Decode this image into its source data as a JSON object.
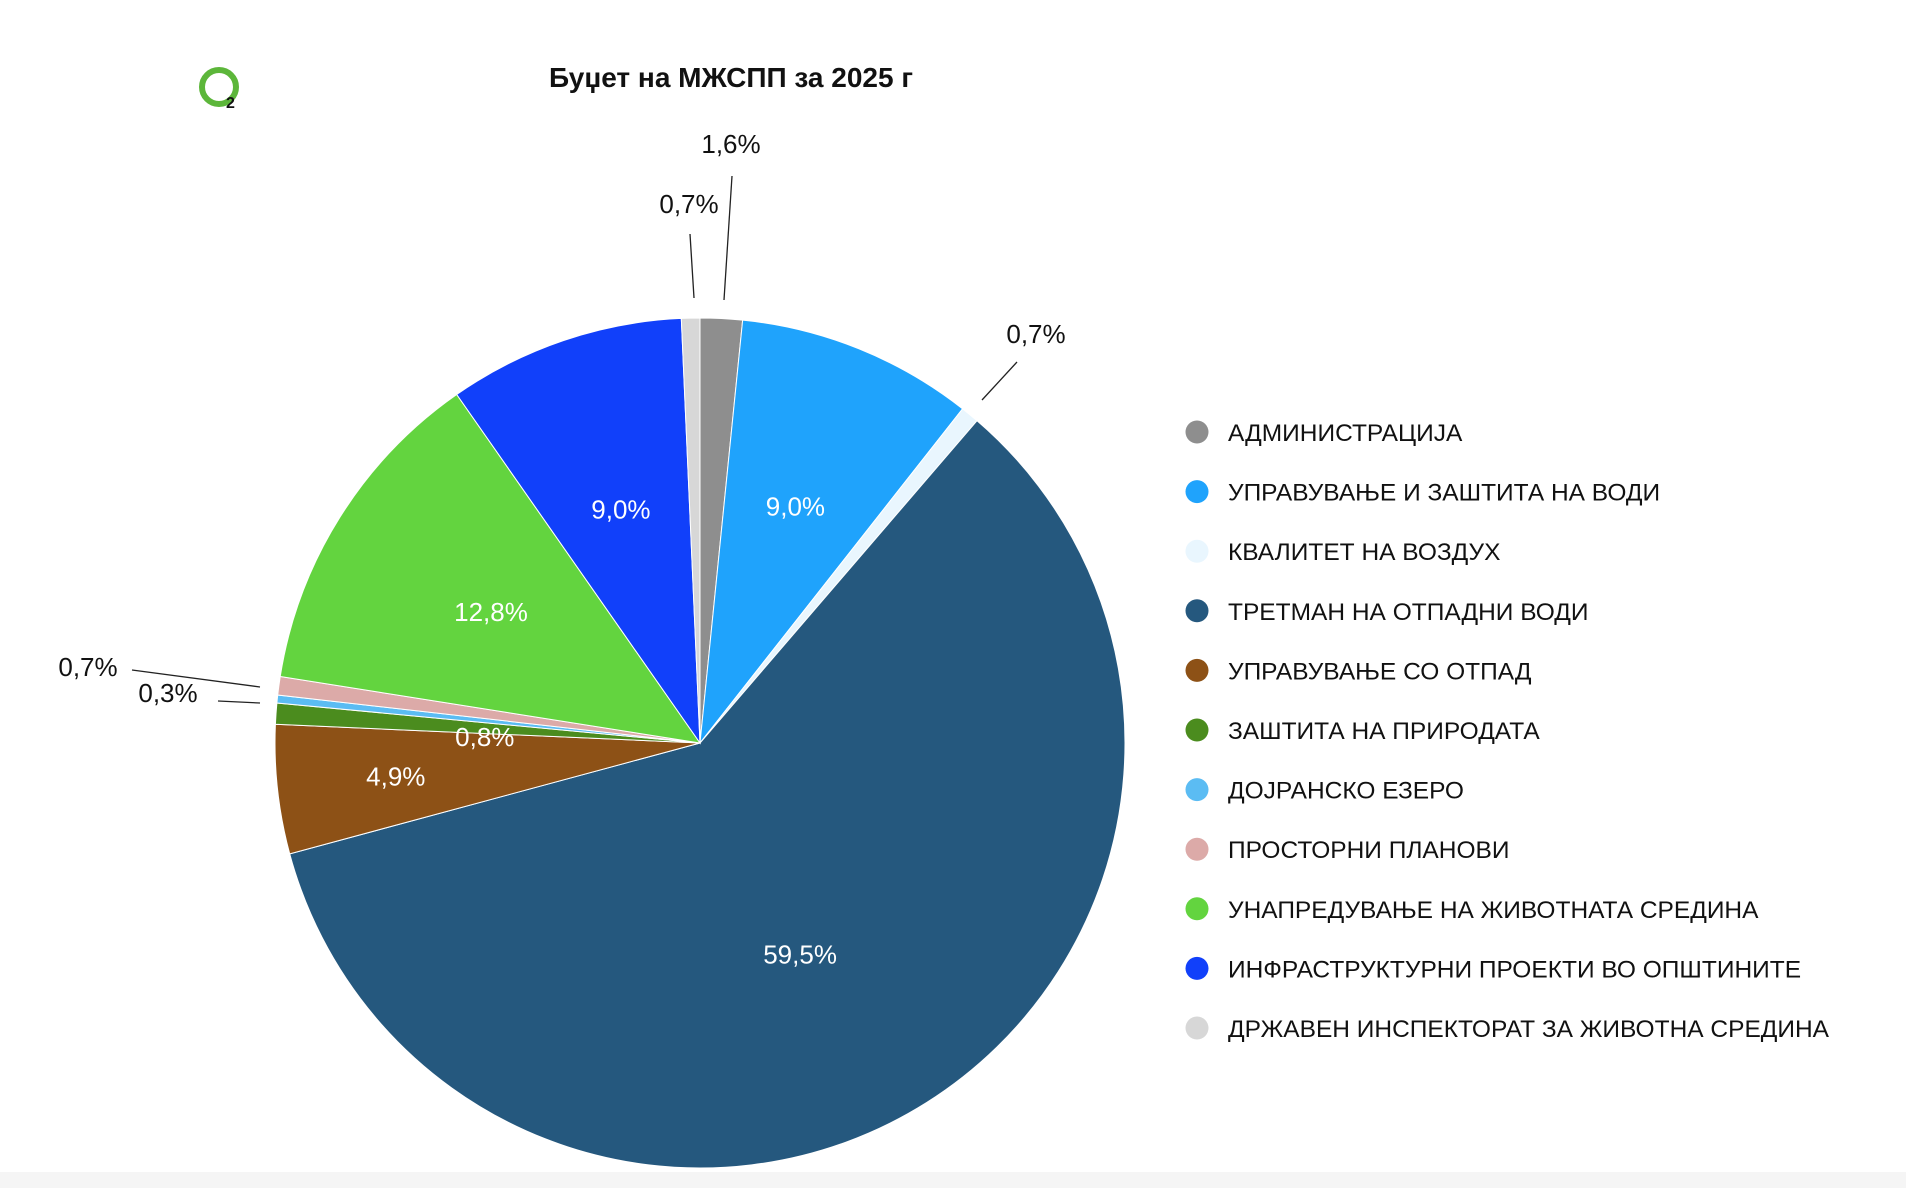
{
  "chart_data": {
    "type": "pie",
    "title": "Буџет на МЖСПП за 2025 г",
    "legend_position": "right",
    "slices": [
      {
        "name": "АДМИНИСТРАЦИЈА",
        "value": 1.6,
        "label": "1,6%",
        "color": "#8e8e8e"
      },
      {
        "name": "УПРАВУВАЊЕ И ЗАШТИТА НА ВОДИ",
        "value": 9.0,
        "label": "9,0%",
        "color": "#1fa3fc"
      },
      {
        "name": "КВАЛИТЕТ НА ВОЗДУХ",
        "value": 0.7,
        "label": "0,7%",
        "color": "#e9f6fe"
      },
      {
        "name": "ТРЕТМАН НА ОТПАДНИ ВОДИ",
        "value": 59.5,
        "label": "59,5%",
        "color": "#25587e"
      },
      {
        "name": "УПРАВУВАЊЕ СО ОТПАД",
        "value": 4.9,
        "label": "4,9%",
        "color": "#8d5116"
      },
      {
        "name": "ЗАШТИТА НА ПРИРОДАТА",
        "value": 0.8,
        "label": "0,8%",
        "color": "#4b8c1e"
      },
      {
        "name": "ДОЈРАНСКО ЕЗЕРО",
        "value": 0.3,
        "label": "0,3%",
        "color": "#5bbcf3"
      },
      {
        "name": "ПРОСТОРНИ ПЛАНОВИ",
        "value": 0.7,
        "label": "0,7%",
        "color": "#dcaaa8"
      },
      {
        "name": "УНАПРЕДУВАЊЕ НА ЖИВОТНАТА СРЕДИНА",
        "value": 12.8,
        "label": "12,8%",
        "color": "#63d43f"
      },
      {
        "name": "ИНФРАСТРУКТУРНИ ПРОЕКТИ ВО ОПШТИНИТЕ",
        "value": 9.0,
        "label": "9,0%",
        "color": "#1140fa"
      },
      {
        "name": "ДРЖАВЕН ИНСПЕКТОРАТ ЗА ЖИВОТНА СРЕДИНА",
        "value": 0.7,
        "label": "0,7%",
        "color": "#d7d7d7"
      }
    ]
  },
  "logo": {
    "text": "2",
    "color": "#5cb63a"
  }
}
